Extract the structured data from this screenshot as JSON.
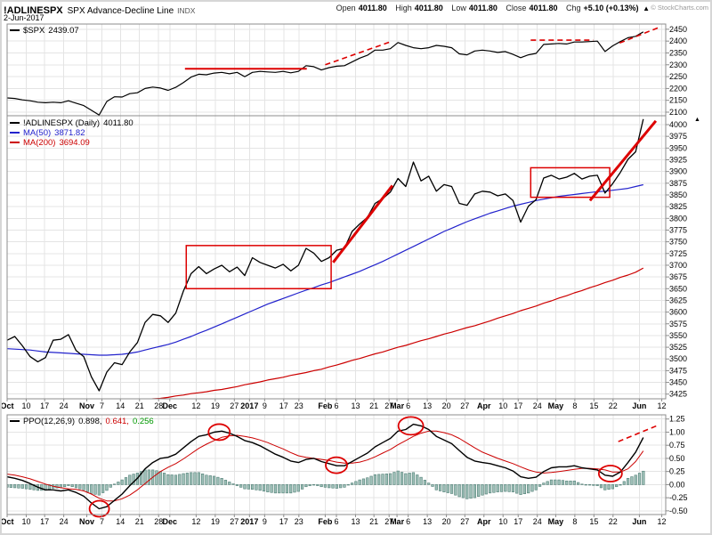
{
  "header": {
    "symbol": "!ADLINESPX",
    "name": "SPX Advance-Decline Line",
    "exchange": "INDX",
    "date": "2-Jun-2017",
    "copyright": "© StockCharts.com",
    "quote": {
      "open_label": "Open",
      "open": "4011.80",
      "high_label": "High",
      "high": "4011.80",
      "low_label": "Low",
      "low": "4011.80",
      "close_label": "Close",
      "close": "4011.80",
      "chg_label": "Chg",
      "chg": "+5.10 (+0.13%)",
      "arrow": "▲"
    }
  },
  "colors": {
    "page_border": "#d6d6d6",
    "grid": "#e4e4e4",
    "border": "#8c8c8c",
    "axis_text": "#000000",
    "annotation": "#dd0000",
    "price": "#000000",
    "ma50": "#2222cc",
    "ma200": "#cc0000",
    "ppo": "#000000",
    "signal": "#cc0000",
    "hist_fill": "#9fc0b8",
    "hist_stroke": "#4e7d74",
    "hist_value_green": "#009900"
  },
  "x_axis": {
    "data_span": 0.966,
    "ticks": [
      {
        "t": "Oct",
        "f": 0.0,
        "m": 1
      },
      {
        "t": "10",
        "f": 0.029
      },
      {
        "t": "17",
        "f": 0.057
      },
      {
        "t": "24",
        "f": 0.086
      },
      {
        "t": "Nov",
        "f": 0.121,
        "m": 1
      },
      {
        "t": "7",
        "f": 0.144
      },
      {
        "t": "14",
        "f": 0.172
      },
      {
        "t": "21",
        "f": 0.201
      },
      {
        "t": "28",
        "f": 0.23
      },
      {
        "t": "Dec",
        "f": 0.247,
        "m": 1
      },
      {
        "t": "12",
        "f": 0.287
      },
      {
        "t": "19",
        "f": 0.316
      },
      {
        "t": "27",
        "f": 0.345
      },
      {
        "t": "2017",
        "f": 0.368,
        "m": 1
      },
      {
        "t": "9",
        "f": 0.391
      },
      {
        "t": "17",
        "f": 0.42
      },
      {
        "t": "23",
        "f": 0.443
      },
      {
        "t": "Feb",
        "f": 0.483,
        "m": 1
      },
      {
        "t": "6",
        "f": 0.5
      },
      {
        "t": "13",
        "f": 0.529
      },
      {
        "t": "21",
        "f": 0.557
      },
      {
        "t": "27",
        "f": 0.58
      },
      {
        "t": "Mar",
        "f": 0.592,
        "m": 1
      },
      {
        "t": "6",
        "f": 0.609
      },
      {
        "t": "13",
        "f": 0.638
      },
      {
        "t": "20",
        "f": 0.667
      },
      {
        "t": "27",
        "f": 0.695
      },
      {
        "t": "Apr",
        "f": 0.724,
        "m": 1
      },
      {
        "t": "10",
        "f": 0.753
      },
      {
        "t": "17",
        "f": 0.776
      },
      {
        "t": "24",
        "f": 0.805
      },
      {
        "t": "May",
        "f": 0.833,
        "m": 1
      },
      {
        "t": "8",
        "f": 0.862
      },
      {
        "t": "15",
        "f": 0.891
      },
      {
        "t": "22",
        "f": 0.92
      },
      {
        "t": "Jun",
        "f": 0.96,
        "m": 1
      },
      {
        "t": "12",
        "f": 0.994
      }
    ]
  },
  "chart_data": [
    {
      "type": "line",
      "panel": "price-overview",
      "title": "$SPX",
      "legend": {
        "label": "$SPX",
        "value": "2439.07"
      },
      "ylim": [
        2085,
        2472
      ],
      "y_ticks": [
        2450,
        2400,
        2350,
        2300,
        2250,
        2200,
        2150,
        2100
      ],
      "series": [
        {
          "key": "spx",
          "name": "$SPX",
          "color": "#000000",
          "width": 1.2,
          "values": [
            2160,
            2158,
            2152,
            2148,
            2142,
            2140,
            2142,
            2140,
            2148,
            2138,
            2128,
            2108,
            2088,
            2145,
            2165,
            2164,
            2178,
            2182,
            2200,
            2206,
            2202,
            2192,
            2205,
            2225,
            2248,
            2260,
            2258,
            2265,
            2268,
            2262,
            2268,
            2250,
            2268,
            2272,
            2270,
            2268,
            2272,
            2266,
            2272,
            2296,
            2292,
            2278,
            2288,
            2294,
            2296,
            2312,
            2328,
            2340,
            2362,
            2362,
            2368,
            2394,
            2382,
            2372,
            2368,
            2372,
            2382,
            2378,
            2372,
            2346,
            2342,
            2358,
            2362,
            2358,
            2352,
            2356,
            2344,
            2330,
            2342,
            2348,
            2386,
            2388,
            2390,
            2388,
            2396,
            2396,
            2398,
            2400,
            2356,
            2380,
            2398,
            2414,
            2420,
            2439.07
          ]
        }
      ],
      "annotations": [
        {
          "kind": "line",
          "x1": 0.27,
          "v1": 2283,
          "x2": 0.455,
          "v2": 2283,
          "w": 2
        },
        {
          "kind": "line",
          "x1": 0.483,
          "v1": 2300,
          "x2": 0.583,
          "v2": 2398,
          "w": 1.6,
          "dash": true
        },
        {
          "kind": "line",
          "x1": 0.795,
          "v1": 2404,
          "x2": 0.89,
          "v2": 2404,
          "w": 1.6,
          "dash": true
        },
        {
          "kind": "line",
          "x1": 0.93,
          "v1": 2392,
          "x2": 0.99,
          "v2": 2458,
          "w": 1.6,
          "dash": true
        }
      ]
    },
    {
      "type": "line",
      "panel": "main",
      "title": "!ADLINESPX (Daily)",
      "overflow_arrow": "▲",
      "legend": {
        "rows": [
          {
            "label": "!ADLINESPX (Daily)",
            "value": "4011.80"
          },
          {
            "label": "MA(50)",
            "value": "3871.82"
          },
          {
            "label": "MA(200)",
            "value": "3694.09"
          }
        ]
      },
      "ylim": [
        3415,
        4019
      ],
      "y_ticks": [
        4000,
        3975,
        3950,
        3925,
        3900,
        3875,
        3850,
        3825,
        3800,
        3775,
        3750,
        3725,
        3700,
        3675,
        3650,
        3625,
        3600,
        3575,
        3550,
        3525,
        3500,
        3475,
        3450,
        3425
      ],
      "series": [
        {
          "key": "adline",
          "name": "!ADLINESPX",
          "color": "#000000",
          "width": 1.3,
          "values": [
            3540,
            3548,
            3528,
            3505,
            3494,
            3503,
            3540,
            3542,
            3552,
            3518,
            3505,
            3462,
            3432,
            3472,
            3492,
            3488,
            3515,
            3535,
            3578,
            3595,
            3592,
            3578,
            3598,
            3645,
            3682,
            3697,
            3682,
            3692,
            3700,
            3686,
            3696,
            3678,
            3716,
            3706,
            3700,
            3694,
            3702,
            3688,
            3700,
            3736,
            3726,
            3708,
            3716,
            3732,
            3736,
            3772,
            3788,
            3802,
            3832,
            3842,
            3856,
            3885,
            3868,
            3920,
            3880,
            3890,
            3858,
            3872,
            3868,
            3832,
            3828,
            3852,
            3858,
            3856,
            3848,
            3852,
            3838,
            3792,
            3826,
            3840,
            3886,
            3892,
            3884,
            3888,
            3896,
            3884,
            3890,
            3892,
            3854,
            3874,
            3898,
            3926,
            3942,
            4011.8
          ]
        },
        {
          "key": "ma50",
          "name": "MA(50)",
          "color": "#2222cc",
          "width": 1.2,
          "values": [
            3522,
            3521,
            3520,
            3519,
            3517,
            3515,
            3514,
            3513,
            3512,
            3511,
            3510,
            3509,
            3508,
            3508,
            3509,
            3510,
            3512,
            3515,
            3519,
            3523,
            3527,
            3531,
            3536,
            3542,
            3548,
            3555,
            3561,
            3568,
            3575,
            3582,
            3589,
            3596,
            3603,
            3610,
            3617,
            3623,
            3629,
            3635,
            3641,
            3647,
            3652,
            3658,
            3663,
            3669,
            3675,
            3681,
            3687,
            3694,
            3701,
            3708,
            3716,
            3724,
            3732,
            3740,
            3748,
            3756,
            3764,
            3772,
            3779,
            3786,
            3793,
            3799,
            3805,
            3811,
            3816,
            3821,
            3826,
            3830,
            3834,
            3838,
            3841,
            3844,
            3847,
            3849,
            3851,
            3853,
            3855,
            3857,
            3858,
            3860,
            3862,
            3864,
            3868,
            3871.82
          ]
        },
        {
          "key": "ma200",
          "name": "MA(200)",
          "color": "#cc0000",
          "width": 1.2,
          "values": [
            3400,
            3401,
            3401,
            3402,
            3402,
            3403,
            3403,
            3404,
            3404,
            3405,
            3405,
            3406,
            3406,
            3407,
            3408,
            3410,
            3411,
            3412,
            3413,
            3415,
            3416,
            3418,
            3421,
            3423,
            3426,
            3428,
            3430,
            3433,
            3435,
            3438,
            3441,
            3445,
            3448,
            3451,
            3455,
            3458,
            3461,
            3465,
            3468,
            3471,
            3475,
            3478,
            3483,
            3487,
            3492,
            3497,
            3501,
            3506,
            3511,
            3515,
            3520,
            3525,
            3529,
            3534,
            3539,
            3543,
            3548,
            3553,
            3557,
            3562,
            3567,
            3571,
            3576,
            3581,
            3587,
            3592,
            3597,
            3603,
            3608,
            3613,
            3619,
            3624,
            3630,
            3635,
            3641,
            3646,
            3652,
            3657,
            3663,
            3668,
            3674,
            3679,
            3685,
            3694.09
          ]
        }
      ],
      "annotations": [
        {
          "kind": "rect",
          "x1": 0.272,
          "x2": 0.492,
          "v1": 3650,
          "v2": 3742,
          "w": 1.5
        },
        {
          "kind": "rect",
          "x1": 0.795,
          "x2": 0.915,
          "v1": 3845,
          "v2": 3908,
          "w": 1.5
        },
        {
          "kind": "line",
          "x1": 0.495,
          "v1": 3706,
          "x2": 0.585,
          "v2": 3870,
          "w": 3
        },
        {
          "kind": "line",
          "x1": 0.885,
          "v1": 3838,
          "x2": 0.985,
          "v2": 4008,
          "w": 3
        }
      ]
    },
    {
      "type": "ppo",
      "panel": "indicator",
      "title": "PPO(12,26,9)",
      "legend": {
        "label": "PPO(12,26,9)",
        "v1": "0.898,",
        "v2": "0.641,",
        "v3": "0.256"
      },
      "ylim": [
        -0.57,
        1.33
      ],
      "y_ticks": [
        "1.25",
        "1.00",
        "0.75",
        "0.50",
        "0.25",
        "0.00",
        "-0.25",
        "-0.50"
      ],
      "series": [
        {
          "key": "ppo",
          "name": "PPO",
          "color": "#000000",
          "width": 1.4,
          "values": [
            0.15,
            0.12,
            0.08,
            0.02,
            -0.05,
            -0.1,
            -0.1,
            -0.12,
            -0.1,
            -0.15,
            -0.22,
            -0.35,
            -0.46,
            -0.42,
            -0.3,
            -0.18,
            -0.02,
            0.12,
            0.3,
            0.42,
            0.5,
            0.52,
            0.58,
            0.7,
            0.82,
            0.92,
            0.95,
            1.0,
            1.02,
            0.98,
            0.92,
            0.84,
            0.8,
            0.74,
            0.66,
            0.58,
            0.52,
            0.45,
            0.42,
            0.48,
            0.5,
            0.44,
            0.4,
            0.36,
            0.36,
            0.44,
            0.52,
            0.6,
            0.72,
            0.8,
            0.88,
            1.02,
            1.05,
            1.15,
            1.12,
            1.05,
            0.92,
            0.85,
            0.78,
            0.65,
            0.52,
            0.45,
            0.42,
            0.4,
            0.36,
            0.32,
            0.26,
            0.15,
            0.12,
            0.14,
            0.25,
            0.32,
            0.34,
            0.34,
            0.36,
            0.32,
            0.3,
            0.28,
            0.18,
            0.16,
            0.24,
            0.42,
            0.62,
            0.898
          ]
        },
        {
          "key": "ppo-signal",
          "name": "Signal",
          "color": "#cc0000",
          "width": 1,
          "values": [
            0.2,
            0.18,
            0.15,
            0.11,
            0.06,
            0.01,
            -0.03,
            -0.06,
            -0.08,
            -0.09,
            -0.12,
            -0.18,
            -0.26,
            -0.31,
            -0.31,
            -0.27,
            -0.2,
            -0.1,
            0.02,
            0.14,
            0.25,
            0.33,
            0.4,
            0.49,
            0.59,
            0.69,
            0.77,
            0.84,
            0.9,
            0.93,
            0.94,
            0.92,
            0.89,
            0.85,
            0.8,
            0.74,
            0.68,
            0.61,
            0.55,
            0.52,
            0.5,
            0.48,
            0.46,
            0.43,
            0.41,
            0.41,
            0.43,
            0.47,
            0.53,
            0.6,
            0.67,
            0.76,
            0.84,
            0.92,
            0.98,
            1.02,
            1.02,
            0.99,
            0.95,
            0.88,
            0.79,
            0.7,
            0.62,
            0.56,
            0.5,
            0.45,
            0.4,
            0.34,
            0.28,
            0.24,
            0.22,
            0.23,
            0.25,
            0.27,
            0.29,
            0.31,
            0.31,
            0.3,
            0.28,
            0.24,
            0.24,
            0.3,
            0.44,
            0.641
          ]
        }
      ],
      "annotations": [
        {
          "kind": "circle",
          "x": 0.14,
          "v": -0.46,
          "rx": 11,
          "ry": 9
        },
        {
          "kind": "circle",
          "x": 0.322,
          "v": 1.0,
          "rx": 12,
          "ry": 9
        },
        {
          "kind": "circle",
          "x": 0.5,
          "v": 0.37,
          "rx": 12,
          "ry": 9
        },
        {
          "kind": "circle",
          "x": 0.613,
          "v": 1.12,
          "rx": 14,
          "ry": 10
        },
        {
          "kind": "circle",
          "x": 0.916,
          "v": 0.21,
          "rx": 13,
          "ry": 9
        },
        {
          "kind": "line",
          "x1": 0.928,
          "v1": 0.82,
          "x2": 0.99,
          "v2": 1.14,
          "w": 1.6,
          "dash": true
        }
      ]
    }
  ]
}
